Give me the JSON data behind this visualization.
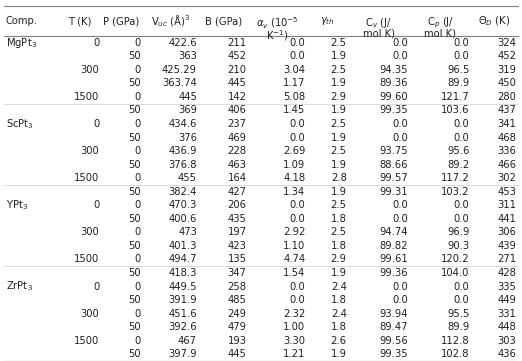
{
  "rows": [
    [
      "MgPt$_3$",
      "0",
      "0",
      "422.6",
      "211",
      "0.0",
      "2.5",
      "0.0",
      "0.0",
      "324"
    ],
    [
      "",
      "",
      "50",
      "363",
      "452",
      "0.0",
      "1.9",
      "0.0",
      "0.0",
      "452"
    ],
    [
      "",
      "300",
      "0",
      "425.29",
      "210",
      "3.04",
      "2.5",
      "94.35",
      "96.5",
      "319"
    ],
    [
      "",
      "",
      "50",
      "363.74",
      "445",
      "1.17",
      "1.9",
      "89.36",
      "89.9",
      "450"
    ],
    [
      "",
      "1500",
      "0",
      "445",
      "142",
      "5.08",
      "2.9",
      "99.60",
      "121.7",
      "280"
    ],
    [
      "",
      "",
      "50",
      "369",
      "406",
      "1.45",
      "1.9",
      "99.35",
      "103.6",
      "437"
    ],
    [
      "ScPt$_3$",
      "0",
      "0",
      "434.6",
      "237",
      "0.0",
      "2.5",
      "0.0",
      "0.0",
      "341"
    ],
    [
      "",
      "",
      "50",
      "376",
      "469",
      "0.0",
      "1.9",
      "0.0",
      "0.0",
      "468"
    ],
    [
      "",
      "300",
      "0",
      "436.9",
      "228",
      "2.69",
      "2.5",
      "93.75",
      "95.6",
      "336"
    ],
    [
      "",
      "",
      "50",
      "376.8",
      "463",
      "1.09",
      "1.9",
      "88.66",
      "89.2",
      "466"
    ],
    [
      "",
      "1500",
      "0",
      "455",
      "164",
      "4.18",
      "2.8",
      "99.57",
      "117.2",
      "302"
    ],
    [
      "",
      "",
      "50",
      "382.4",
      "427",
      "1.34",
      "1.9",
      "99.31",
      "103.2",
      "453"
    ],
    [
      "YPt$_3$",
      "0",
      "0",
      "470.3",
      "206",
      "0.0",
      "2.5",
      "0.0",
      "0.0",
      "311"
    ],
    [
      "",
      "",
      "50",
      "400.6",
      "435",
      "0.0",
      "1.8",
      "0.0",
      "0.0",
      "441"
    ],
    [
      "",
      "300",
      "0",
      "473",
      "197",
      "2.92",
      "2.5",
      "94.74",
      "96.9",
      "306"
    ],
    [
      "",
      "",
      "50",
      "401.3",
      "423",
      "1.10",
      "1.8",
      "89.82",
      "90.3",
      "439"
    ],
    [
      "",
      "1500",
      "0",
      "494.7",
      "135",
      "4.74",
      "2.9",
      "99.61",
      "120.2",
      "271"
    ],
    [
      "",
      "",
      "50",
      "418.3",
      "347",
      "1.54",
      "1.9",
      "99.36",
      "104.0",
      "428"
    ],
    [
      "ZrPt$_3$",
      "0",
      "0",
      "449.5",
      "258",
      "0.0",
      "2.4",
      "0.0",
      "0.0",
      "335"
    ],
    [
      "",
      "",
      "50",
      "391.9",
      "485",
      "0.0",
      "1.8",
      "0.0",
      "0.0",
      "449"
    ],
    [
      "",
      "300",
      "0",
      "451.6",
      "249",
      "2.32",
      "2.4",
      "93.94",
      "95.5",
      "331"
    ],
    [
      "",
      "",
      "50",
      "392.6",
      "479",
      "1.00",
      "1.8",
      "89.47",
      "89.9",
      "448"
    ],
    [
      "",
      "1500",
      "0",
      "467",
      "193",
      "3.30",
      "2.6",
      "99.56",
      "112.8",
      "303"
    ],
    [
      "",
      "",
      "50",
      "397.9",
      "445",
      "1.21",
      "1.9",
      "99.35",
      "102.8",
      "436"
    ]
  ],
  "headers_l1": [
    "Comp.",
    "T (K)",
    "P (GPa)",
    "V$_{uc}$ (Å)$^3$",
    "B (GPa)",
    "$\\alpha_v$ (10$^{-5}$",
    "$\\gamma_{th}$",
    "C$_v$ (J/",
    "C$_p$ (J/",
    "$\\Theta_D$ (K)"
  ],
  "headers_l2": [
    "",
    "",
    "",
    "",
    "",
    "K$^{-1}$)",
    "",
    "mol K)",
    "mol K)",
    ""
  ],
  "col_rights": [
    true,
    false,
    false,
    false,
    false,
    false,
    false,
    false,
    false,
    false
  ],
  "bg_color": "#ffffff",
  "text_color": "#231f20",
  "line_color": "#7f7f7f",
  "font_size": 7.2,
  "header_font_size": 7.2,
  "separator_after_rows": [
    5,
    11,
    17
  ]
}
